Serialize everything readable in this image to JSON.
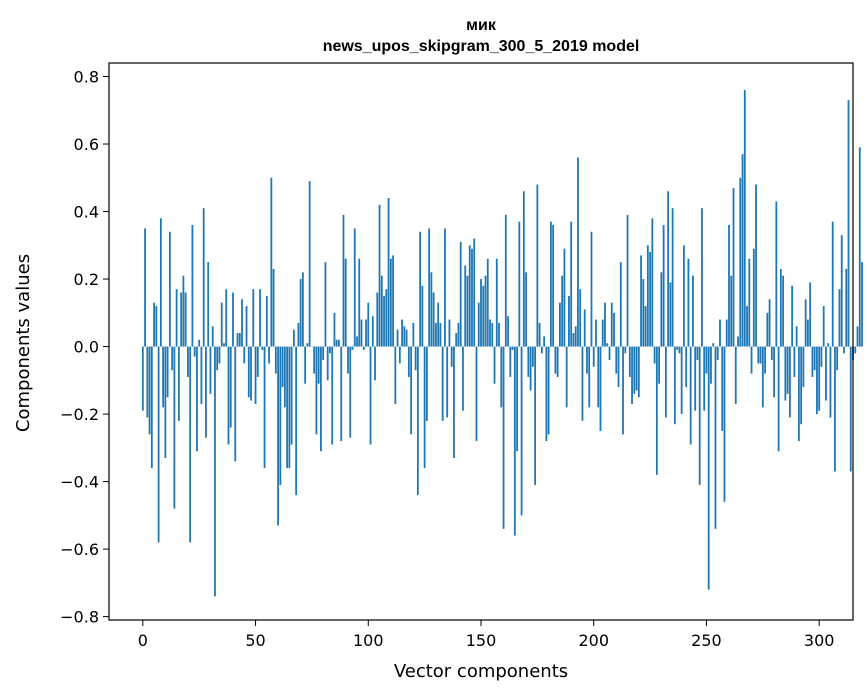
{
  "chart_data": {
    "type": "bar",
    "title": "мик",
    "subtitle": "news_upos_skipgram_300_5_2019 model",
    "xlabel": "Vector components",
    "ylabel": "Components values",
    "xlim": [
      -15,
      315
    ],
    "ylim": [
      -0.81,
      0.84
    ],
    "xticks": [
      0,
      50,
      100,
      150,
      200,
      250,
      300
    ],
    "yticks": [
      -0.8,
      -0.6,
      -0.4,
      -0.2,
      0.0,
      0.2,
      0.4,
      0.6,
      0.8
    ],
    "xtick_labels": [
      "0",
      "50",
      "100",
      "150",
      "200",
      "250",
      "300"
    ],
    "ytick_labels": [
      "−0.8",
      "−0.6",
      "−0.4",
      "−0.2",
      "0.0",
      "0.2",
      "0.4",
      "0.6",
      "0.8"
    ],
    "grid": false,
    "bar_color": "#1f77b4",
    "values": [
      -0.19,
      0.35,
      -0.21,
      -0.26,
      -0.36,
      0.13,
      0.12,
      -0.58,
      0.38,
      -0.18,
      -0.33,
      -0.15,
      0.34,
      -0.07,
      -0.48,
      0.17,
      -0.22,
      0.16,
      0.21,
      0.16,
      -0.09,
      -0.58,
      0.36,
      -0.03,
      -0.31,
      0.02,
      -0.17,
      0.41,
      -0.27,
      0.25,
      -0.14,
      0.06,
      -0.74,
      -0.07,
      -0.05,
      0.13,
      0.01,
      0.17,
      -0.29,
      -0.24,
      0.16,
      -0.34,
      0.04,
      0.04,
      0.14,
      -0.05,
      0.12,
      -0.15,
      -0.16,
      0.17,
      -0.17,
      -0.09,
      0.17,
      -0.01,
      -0.36,
      0.15,
      -0.05,
      0.5,
      0.23,
      -0.08,
      -0.53,
      -0.41,
      -0.12,
      -0.18,
      -0.36,
      -0.36,
      -0.29,
      0.05,
      -0.44,
      0.07,
      0.2,
      0.22,
      -0.11,
      0.01,
      0.49,
      0.0,
      -0.08,
      -0.26,
      -0.11,
      -0.31,
      -0.04,
      0.25,
      -0.1,
      -0.02,
      -0.29,
      0.1,
      0.02,
      0.02,
      -0.28,
      0.39,
      0.26,
      -0.08,
      -0.27,
      -0.01,
      0.35,
      0.03,
      0.26,
      0.08,
      -0.01,
      0.08,
      0.13,
      -0.29,
      0.09,
      -0.1,
      0.16,
      0.42,
      0.21,
      0.15,
      0.17,
      0.44,
      0.26,
      0.27,
      -0.17,
      0.05,
      -0.05,
      0.08,
      0.06,
      0.05,
      -0.09,
      -0.26,
      0.07,
      -0.07,
      -0.44,
      0.34,
      0.18,
      -0.36,
      -0.22,
      0.35,
      0.22,
      0.16,
      0.07,
      0.13,
      0.07,
      -0.22,
      0.35,
      -0.21,
      0.08,
      -0.06,
      -0.33,
      0.04,
      0.07,
      0.31,
      -0.19,
      0.24,
      0.21,
      0.3,
      0.29,
      0.32,
      -0.28,
      0.13,
      0.2,
      0.18,
      0.21,
      0.26,
      0.08,
      0.07,
      -0.11,
      0.26,
      0.07,
      -0.18,
      -0.54,
      0.39,
      0.09,
      -0.09,
      -0.01,
      -0.56,
      -0.31,
      0.37,
      -0.5,
      0.46,
      0.22,
      -0.09,
      -0.13,
      -0.06,
      -0.41,
      0.48,
      0.07,
      -0.02,
      0.03,
      -0.28,
      -0.26,
      0.37,
      0.36,
      -0.08,
      -0.09,
      0.13,
      0.21,
      0.29,
      -0.18,
      0.15,
      0.37,
      0.04,
      0.06,
      0.56,
      0.17,
      -0.22,
      0.11,
      -0.08,
      -0.18,
      0.34,
      -0.06,
      0.08,
      -0.18,
      -0.25,
      0.08,
      0.13,
      0.01,
      -0.04,
      0.13,
      0.1,
      -0.08,
      -0.12,
      0.25,
      -0.26,
      -0.02,
      0.39,
      -0.09,
      -0.17,
      -0.14,
      -0.13,
      -0.15,
      0.27,
      0.2,
      0.12,
      0.3,
      0.28,
      0.38,
      -0.05,
      -0.38,
      -0.11,
      0.22,
      0.36,
      -0.21,
      0.46,
      0.19,
      0.41,
      -0.23,
      -0.01,
      -0.02,
      -0.2,
      0.3,
      -0.12,
      0.26,
      -0.29,
      0.21,
      -0.19,
      -0.04,
      -0.41,
      0.41,
      -0.19,
      -0.08,
      -0.72,
      -0.11,
      0.01,
      -0.54,
      -0.04,
      0.08,
      -0.25,
      -0.46,
      0.08,
      0.36,
      0.21,
      0.47,
      -0.17,
      0.03,
      0.5,
      0.57,
      0.76,
      0.12,
      0.26,
      -0.08,
      0.29,
      0.48,
      -0.05,
      -0.05,
      -0.18,
      -0.08,
      0.1,
      0.14,
      -0.04,
      -0.15,
      0.43,
      -0.31,
      0.23,
      0.21,
      -0.16,
      -0.14,
      -0.21,
      0.18,
      -0.09,
      0.06,
      -0.28,
      -0.23,
      -0.12,
      0.14,
      0.08,
      0.19,
      -0.09,
      -0.07,
      -0.2,
      -0.19,
      -0.06,
      0.12,
      -0.16,
      0.01,
      -0.21,
      0.37,
      -0.37,
      -0.07,
      0.17,
      0.33,
      -0.02,
      0.23,
      0.73,
      -0.37,
      -0.04,
      -0.02,
      0.06,
      0.59,
      0.25
    ]
  }
}
